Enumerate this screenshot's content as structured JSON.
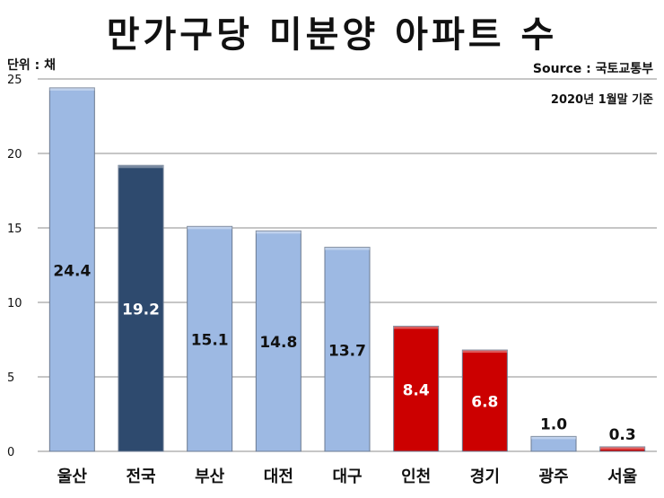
{
  "header": {
    "title": "만가구당 미분양 아파트 수",
    "unit": "단위 : 채",
    "source": "Source :  국토교통부",
    "date_note": "2020년 1월말 기준"
  },
  "colors": {
    "light_bar": "#9db9e3",
    "dark_bar": "#2e4a6e",
    "red_bar": "#cc0000",
    "grid": "#8c8c8c"
  },
  "chart_data": {
    "type": "bar",
    "title": "만가구당 미분양 아파트 수",
    "xlabel": "",
    "ylabel": "",
    "categories": [
      "울산",
      "전국",
      "부산",
      "대전",
      "대구",
      "인천",
      "경기",
      "광주",
      "서울"
    ],
    "values": [
      24.4,
      19.2,
      15.1,
      14.8,
      13.7,
      8.4,
      6.8,
      1.0,
      0.3
    ],
    "value_labels": [
      "24.4",
      "19.2",
      "15.1",
      "14.8",
      "13.7",
      "8.4",
      "6.8",
      "1.0",
      "0.3"
    ],
    "bar_colors": [
      "light",
      "dark",
      "light",
      "light",
      "light",
      "red",
      "red",
      "light",
      "red"
    ],
    "ylim": [
      0,
      25
    ],
    "yticks": [
      0,
      5,
      10,
      15,
      20,
      25
    ],
    "grid": true,
    "legend": "none"
  }
}
